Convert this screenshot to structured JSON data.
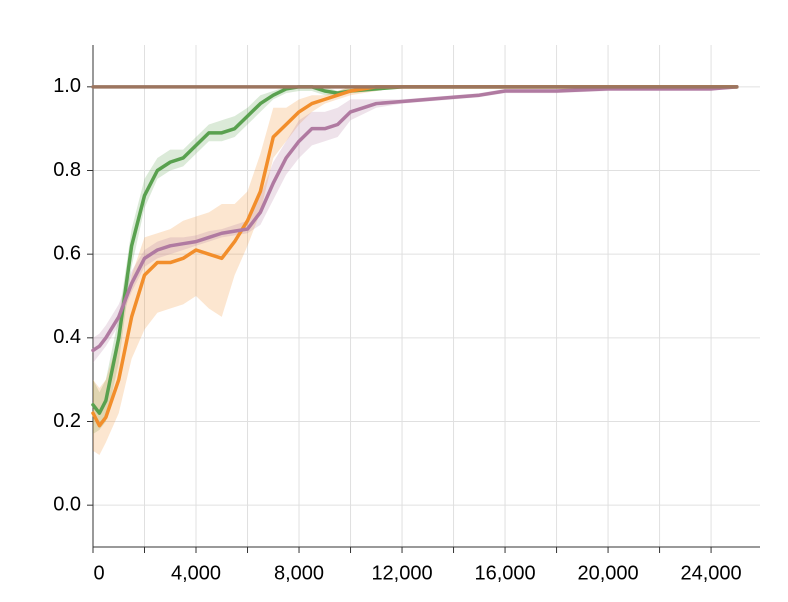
{
  "chart_data": {
    "type": "line",
    "x": [
      0,
      250,
      500,
      1000,
      1500,
      2000,
      2500,
      3000,
      3500,
      4000,
      4500,
      5000,
      5500,
      6000,
      6500,
      7000,
      7500,
      8000,
      8500,
      9000,
      9500,
      10000,
      11000,
      12000,
      13000,
      14000,
      15000,
      16000,
      18000,
      20000,
      22000,
      24000,
      25000
    ],
    "series": [
      {
        "color": "#59a14f",
        "values": [
          0.24,
          0.22,
          0.25,
          0.4,
          0.62,
          0.74,
          0.8,
          0.82,
          0.83,
          0.86,
          0.89,
          0.89,
          0.9,
          0.93,
          0.96,
          0.98,
          0.995,
          1,
          1,
          0.99,
          0.985,
          0.99,
          0.995,
          1,
          1,
          1,
          1,
          1,
          1,
          1,
          1,
          1,
          1
        ],
        "lower": [
          0.17,
          0.18,
          0.2,
          0.34,
          0.57,
          0.71,
          0.78,
          0.8,
          0.81,
          0.84,
          0.87,
          0.87,
          0.88,
          0.91,
          0.94,
          0.97,
          0.985,
          0.99,
          0.99,
          0.98,
          0.98,
          0.985,
          0.99,
          1,
          1,
          1,
          1,
          1,
          1,
          1,
          1,
          1,
          1
        ],
        "upper": [
          0.3,
          0.27,
          0.3,
          0.45,
          0.66,
          0.78,
          0.83,
          0.85,
          0.85,
          0.88,
          0.91,
          0.92,
          0.93,
          0.95,
          0.98,
          0.99,
          1,
          1,
          1,
          1,
          0.99,
          1,
          1,
          1,
          1,
          1,
          1,
          1,
          1,
          1,
          1,
          1,
          1
        ]
      },
      {
        "color": "#f28e2b",
        "values": [
          0.22,
          0.19,
          0.21,
          0.3,
          0.45,
          0.55,
          0.58,
          0.58,
          0.59,
          0.61,
          0.6,
          0.59,
          0.63,
          0.68,
          0.75,
          0.88,
          0.91,
          0.94,
          0.96,
          0.97,
          0.98,
          0.99,
          1,
          1,
          1,
          1,
          1,
          1,
          1,
          1,
          1,
          1,
          1
        ],
        "lower": [
          0.13,
          0.12,
          0.15,
          0.22,
          0.35,
          0.42,
          0.46,
          0.47,
          0.48,
          0.5,
          0.47,
          0.45,
          0.55,
          0.62,
          0.7,
          0.83,
          0.87,
          0.91,
          0.94,
          0.96,
          0.97,
          0.98,
          0.99,
          1,
          1,
          1,
          1,
          1,
          1,
          1,
          1,
          1,
          1
        ],
        "upper": [
          0.3,
          0.28,
          0.3,
          0.4,
          0.55,
          0.64,
          0.65,
          0.66,
          0.68,
          0.69,
          0.7,
          0.72,
          0.72,
          0.75,
          0.84,
          0.95,
          0.95,
          0.97,
          0.98,
          0.98,
          0.99,
          1,
          1,
          1,
          1,
          1,
          1,
          1,
          1,
          1,
          1,
          1,
          1
        ]
      },
      {
        "color": "#b07aa1",
        "values": [
          0.37,
          0.38,
          0.4,
          0.45,
          0.53,
          0.59,
          0.61,
          0.62,
          0.625,
          0.63,
          0.64,
          0.65,
          0.655,
          0.66,
          0.7,
          0.77,
          0.83,
          0.87,
          0.9,
          0.9,
          0.91,
          0.94,
          0.96,
          0.965,
          0.97,
          0.975,
          0.98,
          0.99,
          0.99,
          0.995,
          0.995,
          0.995,
          1
        ],
        "lower": [
          0.34,
          0.36,
          0.38,
          0.43,
          0.51,
          0.57,
          0.59,
          0.6,
          0.61,
          0.62,
          0.63,
          0.64,
          0.645,
          0.65,
          0.67,
          0.73,
          0.79,
          0.83,
          0.86,
          0.87,
          0.88,
          0.92,
          0.95,
          0.96,
          0.965,
          0.97,
          0.975,
          0.985,
          0.985,
          0.99,
          0.99,
          0.99,
          1
        ],
        "upper": [
          0.4,
          0.41,
          0.43,
          0.48,
          0.56,
          0.61,
          0.63,
          0.64,
          0.64,
          0.645,
          0.655,
          0.66,
          0.67,
          0.68,
          0.74,
          0.82,
          0.87,
          0.92,
          0.94,
          0.94,
          0.95,
          0.97,
          0.97,
          0.97,
          0.975,
          0.98,
          0.985,
          0.995,
          0.995,
          1,
          1,
          1,
          1
        ]
      },
      {
        "color": "#9c755f",
        "values": [
          1,
          1,
          1,
          1,
          1,
          1,
          1,
          1,
          1,
          1,
          1,
          1,
          1,
          1,
          1,
          1,
          1,
          1,
          1,
          1,
          1,
          1,
          1,
          1,
          1,
          1,
          1,
          1,
          1,
          1,
          1,
          1,
          1
        ]
      }
    ],
    "xlim": [
      0,
      25900
    ],
    "ylim": [
      -0.1,
      1.1
    ],
    "xticks": [
      0,
      {
        "value": 4000,
        "label": "4,000"
      },
      {
        "value": 8000,
        "label": "8,000"
      },
      {
        "value": 12000,
        "label": "12,000"
      },
      {
        "value": 16000,
        "label": "16,000"
      },
      {
        "value": 20000,
        "label": "20,000"
      },
      {
        "value": 24000,
        "label": "24,000"
      }
    ],
    "x_minor_ticks": [
      2000,
      6000,
      10000,
      14000,
      18000,
      22000
    ],
    "yticks": [
      {
        "value": 0,
        "label": "0.0"
      },
      {
        "value": 0.2,
        "label": "0.2"
      },
      {
        "value": 0.4,
        "label": "0.4"
      },
      {
        "value": 0.6,
        "label": "0.6"
      },
      {
        "value": 0.8,
        "label": "0.8"
      },
      {
        "value": 1,
        "label": "1.0"
      }
    ],
    "grid": true
  }
}
